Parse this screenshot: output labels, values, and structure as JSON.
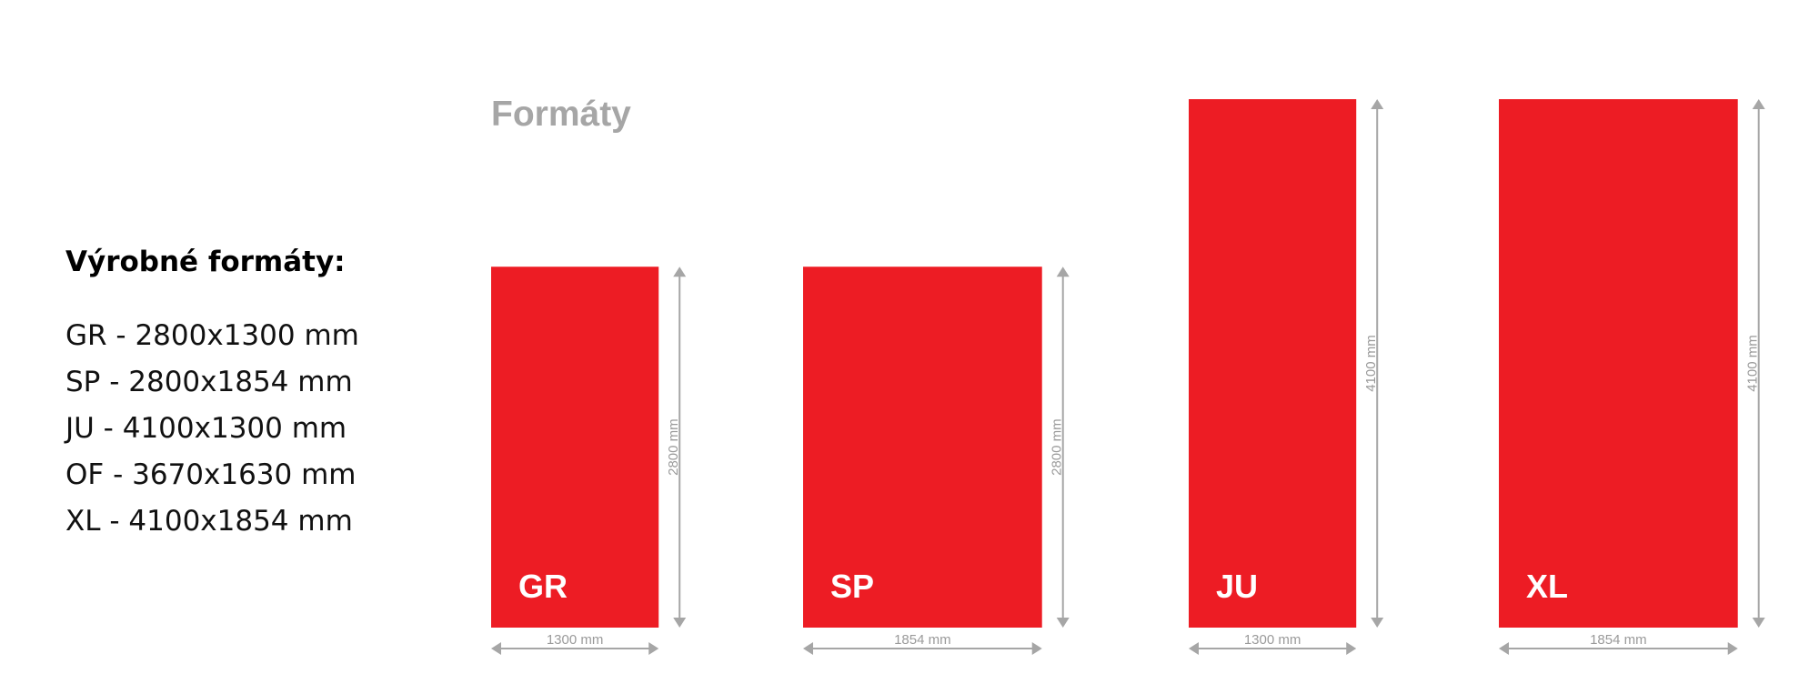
{
  "specs": {
    "title": "Výrobné formáty:",
    "items": [
      "GR - 2800x1300 mm",
      "SP - 2800x1854 mm",
      "JU - 4100x1300 mm",
      "OF - 3670x1630 mm",
      "XL - 4100x1854 mm"
    ]
  },
  "diagram": {
    "title": "Formáty",
    "panel_color": "#ed1c24",
    "dimension_color": "#a6a6a6",
    "formats": [
      {
        "code": "GR",
        "width_mm": 1300,
        "height_mm": 2800,
        "width_label": "1300 mm",
        "height_label": "2800 mm"
      },
      {
        "code": "SP",
        "width_mm": 1854,
        "height_mm": 2800,
        "width_label": "1854 mm",
        "height_label": "2800 mm"
      },
      {
        "code": "JU",
        "width_mm": 1300,
        "height_mm": 4100,
        "width_label": "1300 mm",
        "height_label": "4100 mm"
      },
      {
        "code": "XL",
        "width_mm": 1854,
        "height_mm": 4100,
        "width_label": "1854 mm",
        "height_label": "4100 mm"
      }
    ]
  }
}
